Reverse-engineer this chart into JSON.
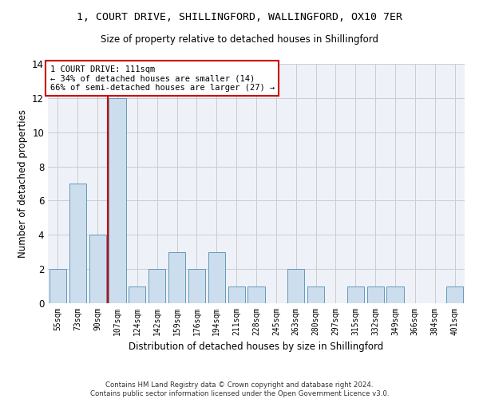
{
  "title1": "1, COURT DRIVE, SHILLINGFORD, WALLINGFORD, OX10 7ER",
  "title2": "Size of property relative to detached houses in Shillingford",
  "xlabel": "Distribution of detached houses by size in Shillingford",
  "ylabel": "Number of detached properties",
  "categories": [
    "55sqm",
    "73sqm",
    "90sqm",
    "107sqm",
    "124sqm",
    "142sqm",
    "159sqm",
    "176sqm",
    "194sqm",
    "211sqm",
    "228sqm",
    "245sqm",
    "263sqm",
    "280sqm",
    "297sqm",
    "315sqm",
    "332sqm",
    "349sqm",
    "366sqm",
    "384sqm",
    "401sqm"
  ],
  "values": [
    2,
    7,
    4,
    12,
    1,
    2,
    3,
    2,
    3,
    1,
    1,
    0,
    2,
    1,
    0,
    1,
    1,
    1,
    0,
    0,
    1
  ],
  "bar_color": "#ccdded",
  "bar_edge_color": "#6699bb",
  "subject_line_color": "#cc0000",
  "annotation_text": "1 COURT DRIVE: 111sqm\n← 34% of detached houses are smaller (14)\n66% of semi-detached houses are larger (27) →",
  "annotation_box_color": "#cc0000",
  "grid_color": "#cccccc",
  "bg_color": "#eef2f8",
  "footer": "Contains HM Land Registry data © Crown copyright and database right 2024.\nContains public sector information licensed under the Open Government Licence v3.0.",
  "ylim": [
    0,
    14
  ],
  "yticks": [
    0,
    2,
    4,
    6,
    8,
    10,
    12,
    14
  ]
}
